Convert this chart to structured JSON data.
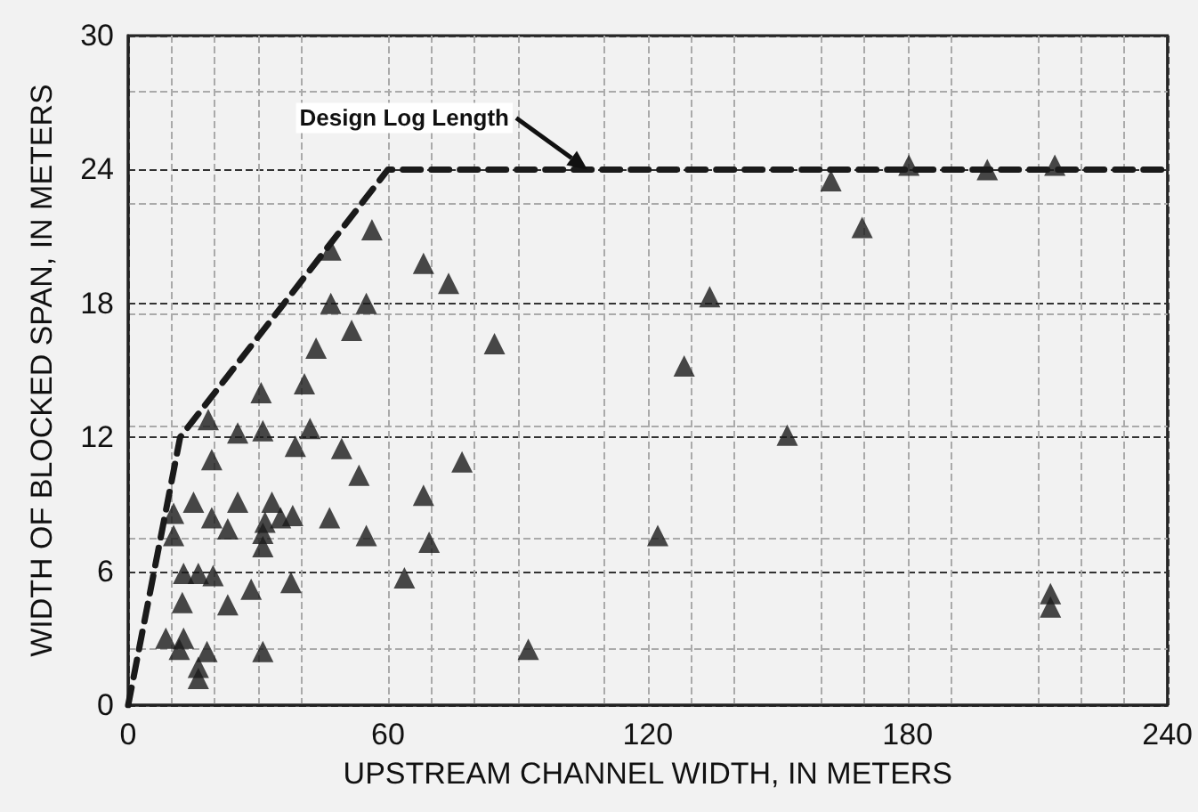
{
  "chart_data": {
    "type": "scatter",
    "xlabel": "UPSTREAM CHANNEL WIDTH, IN METERS",
    "ylabel": "WIDTH OF BLOCKED SPAN, IN METERS",
    "xlim": [
      0,
      240
    ],
    "xticks": [
      0,
      60,
      120,
      180,
      240
    ],
    "ylim": [
      0,
      30
    ],
    "yticks": [
      0,
      6,
      12,
      18,
      24,
      30
    ],
    "grid": true,
    "marker": "triangle",
    "annotations": [
      "Design Log Length"
    ],
    "series": [
      {
        "color": "#1a1a1a",
        "x": [
          56.3,
          46.8,
          68.2,
          74,
          46.8,
          55,
          51.6,
          43.4,
          40.7,
          30.7,
          18.5,
          25.3,
          31.1,
          42,
          38.6,
          49.3,
          19.3,
          53.3,
          15.1,
          25.3,
          33.2,
          10.5,
          19.3,
          23,
          31.6,
          35.2,
          38,
          46.5,
          10.5,
          31.1,
          31.1,
          55,
          68.2,
          69.5,
          12.8,
          16.2,
          19.6,
          28.4,
          37.6,
          63.8,
          12.5,
          23,
          8.7,
          12.8,
          11.8,
          18.2,
          31.1,
          16.2,
          16.2,
          169.5,
          134.3,
          84.6,
          128.4,
          152.2,
          77.1,
          122.3,
          213,
          213,
          92.4,
          162.3,
          180.3,
          198.4,
          214
        ],
        "values": [
          21.3,
          20.4,
          19.8,
          18.9,
          18.0,
          18.0,
          16.8,
          16.0,
          14.4,
          14.0,
          12.8,
          12.2,
          12.3,
          12.4,
          11.6,
          11.5,
          11.0,
          10.3,
          9.1,
          9.1,
          9.1,
          8.6,
          8.4,
          7.9,
          8.2,
          8.4,
          8.5,
          8.4,
          7.6,
          7.7,
          7.1,
          7.6,
          9.4,
          7.3,
          5.9,
          5.9,
          5.8,
          5.2,
          5.5,
          5.7,
          4.6,
          4.5,
          3.0,
          3.0,
          2.5,
          2.4,
          2.4,
          1.7,
          1.2,
          21.4,
          18.3,
          16.2,
          15.2,
          12.1,
          10.9,
          7.6,
          5.0,
          4.4,
          2.5,
          23.5,
          24.2,
          24.0,
          24.2
        ]
      },
      {
        "type": "line",
        "color": "#1a1a1a",
        "line_style": "dashed",
        "marker": "none",
        "x": [
          0,
          12,
          60,
          240
        ],
        "values": [
          0,
          12,
          24,
          24
        ]
      }
    ]
  }
}
